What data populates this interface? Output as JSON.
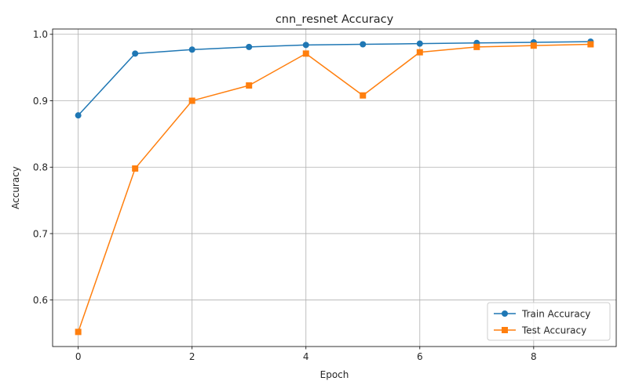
{
  "chart_data": {
    "type": "line",
    "title": "cnn_resnet Accuracy",
    "xlabel": "Epoch",
    "ylabel": "Accuracy",
    "x": [
      0,
      1,
      2,
      3,
      4,
      5,
      6,
      7,
      8,
      9
    ],
    "xlim": [
      -0.45,
      9.45
    ],
    "ylim": [
      0.53,
      1.008
    ],
    "xticks": [
      0,
      2,
      4,
      6,
      8
    ],
    "yticks": [
      0.6,
      0.7,
      0.8,
      0.9,
      1.0
    ],
    "xtick_labels": [
      "0",
      "2",
      "4",
      "6",
      "8"
    ],
    "ytick_labels": [
      "0.6",
      "0.7",
      "0.8",
      "0.9",
      "1.0"
    ],
    "grid": true,
    "legend_position": "bottom-right",
    "series": [
      {
        "name": "Train Accuracy",
        "color": "#1f77b4",
        "marker": "circle",
        "values": [
          0.878,
          0.971,
          0.977,
          0.981,
          0.984,
          0.985,
          0.986,
          0.987,
          0.988,
          0.989
        ]
      },
      {
        "name": "Test Accuracy",
        "color": "#ff7f0e",
        "marker": "square",
        "values": [
          0.552,
          0.798,
          0.9,
          0.923,
          0.971,
          0.908,
          0.973,
          0.981,
          0.983,
          0.985
        ]
      }
    ]
  }
}
